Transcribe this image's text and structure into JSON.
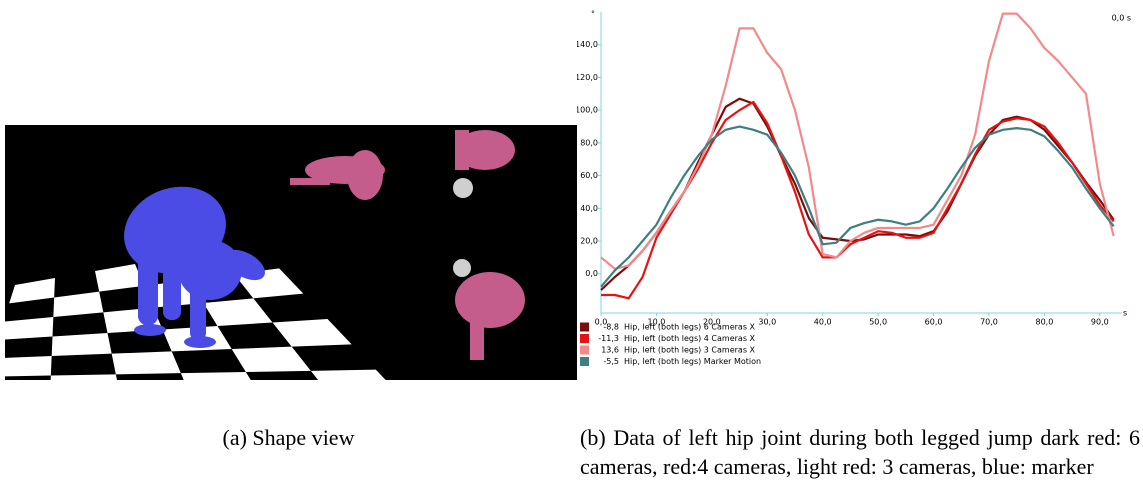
{
  "captions": {
    "a": "(a) Shape view",
    "b": "(b) Data of left hip joint during both legged jump dark red: 6 cameras, red:4 cameras, light red: 3 cameras, blue: marker"
  },
  "chart_data": {
    "type": "line",
    "y_unit": "°",
    "x_unit": "s",
    "time_label": "0,0 s",
    "axis_color": "#7fd6e6",
    "grid": false,
    "xlim": [
      0,
      94
    ],
    "ylim": [
      -24,
      160
    ],
    "xticks": [
      {
        "value": 0,
        "label": "0,0"
      },
      {
        "value": 10,
        "label": "10,0"
      },
      {
        "value": 20,
        "label": "20,0"
      },
      {
        "value": 30,
        "label": "30,0"
      },
      {
        "value": 40,
        "label": "40,0"
      },
      {
        "value": 50,
        "label": "50,0"
      },
      {
        "value": 60,
        "label": "60,0"
      },
      {
        "value": 70,
        "label": "70,0"
      },
      {
        "value": 80,
        "label": "80,0"
      },
      {
        "value": 90,
        "label": "90,0"
      }
    ],
    "yticks": [
      {
        "value": 0,
        "label": "0,0"
      },
      {
        "value": 20,
        "label": "20,0"
      },
      {
        "value": 40,
        "label": "40,0"
      },
      {
        "value": 60,
        "label": "60,0"
      },
      {
        "value": 80,
        "label": "80,0"
      },
      {
        "value": 100,
        "label": "100,0"
      },
      {
        "value": 120,
        "label": "120,0"
      },
      {
        "value": 140,
        "label": "140,0"
      }
    ],
    "x": [
      0,
      2.5,
      5,
      7.5,
      10,
      12.5,
      15,
      17.5,
      20,
      22.5,
      25,
      27.5,
      30,
      32.5,
      35,
      37.5,
      40,
      42.5,
      45,
      47.5,
      50,
      52.5,
      55,
      57.5,
      60,
      62.5,
      65,
      67.5,
      70,
      72.5,
      75,
      77.5,
      80,
      82.5,
      85,
      87.5,
      90,
      92.5
    ],
    "series": [
      {
        "name": "Hip, left (both legs) 6 Cameras X",
        "cursor_label": "-8,8",
        "color": "#7a0c0c",
        "values": [
          -10,
          -2,
          5,
          14,
          25,
          38,
          50,
          68,
          85,
          102,
          107,
          104,
          90,
          72,
          55,
          34,
          22,
          21,
          20,
          21,
          24,
          24,
          24,
          23,
          26,
          38,
          55,
          72,
          85,
          94,
          96,
          94,
          88,
          78,
          68,
          56,
          45,
          33
        ]
      },
      {
        "name": "Hip, left (both legs) 4 Cameras X",
        "cursor_label": "-11,3",
        "color": "#e41414",
        "values": [
          -13,
          -13,
          -15,
          -2,
          22,
          36,
          50,
          64,
          80,
          94,
          100,
          105,
          92,
          72,
          50,
          24,
          10,
          10,
          18,
          22,
          26,
          25,
          22,
          22,
          25,
          40,
          55,
          73,
          88,
          93,
          95,
          94,
          90,
          80,
          68,
          55,
          42,
          32
        ]
      },
      {
        "name": "Hip, left (both legs) 3 Cameras X",
        "cursor_label": "13,6",
        "color": "#f28a8a",
        "values": [
          10,
          3,
          5,
          14,
          25,
          38,
          50,
          66,
          85,
          115,
          150,
          150,
          135,
          125,
          100,
          65,
          12,
          10,
          20,
          25,
          28,
          28,
          28,
          28,
          30,
          45,
          60,
          85,
          130,
          159,
          159,
          150,
          138,
          130,
          120,
          110,
          55,
          23
        ]
      },
      {
        "name": "Hip, left (both legs) Marker Motion",
        "cursor_label": "-5,5",
        "color": "#3f7f80",
        "values": [
          -8,
          2,
          10,
          20,
          30,
          46,
          60,
          72,
          82,
          88,
          90,
          88,
          85,
          74,
          60,
          40,
          18,
          19,
          28,
          31,
          33,
          32,
          30,
          32,
          40,
          52,
          65,
          77,
          85,
          88,
          89,
          88,
          84,
          75,
          65,
          52,
          40,
          29
        ]
      }
    ]
  }
}
